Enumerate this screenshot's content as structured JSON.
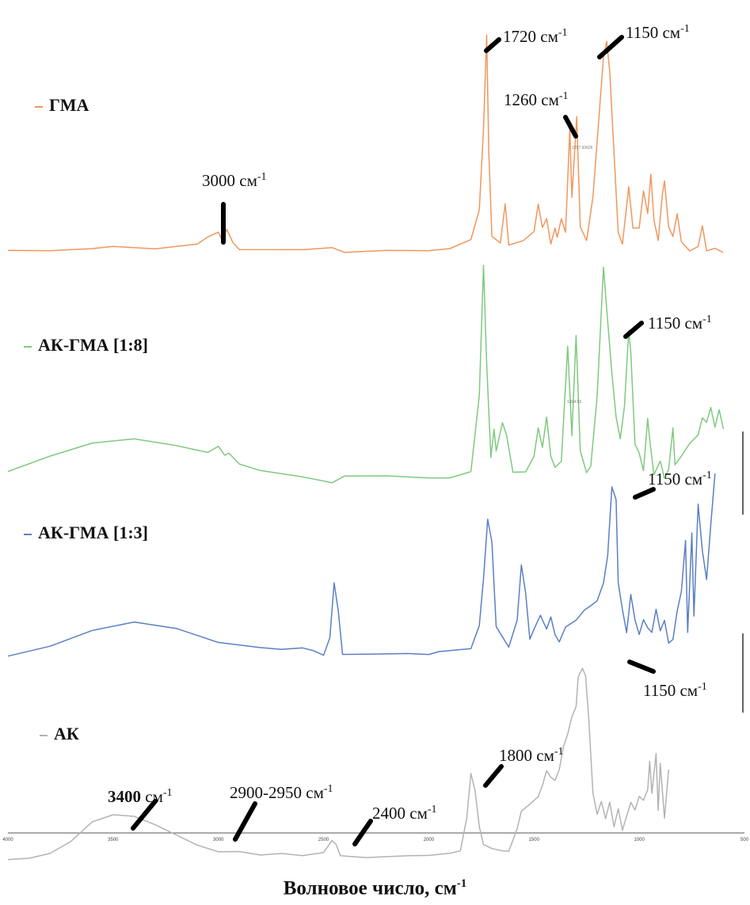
{
  "chart_data": {
    "type": "line",
    "xlabel": "Волновое число, см",
    "xlabel_sup": "-1",
    "xlim": [
      4000,
      500
    ],
    "x_ticks": [
      "4000",
      "3500",
      "3000",
      "2500",
      "2000",
      "1500",
      "1000",
      "500"
    ],
    "series": [
      {
        "name": "ГМА",
        "color": "#f0975e",
        "marker": "–",
        "points": [
          [
            4000,
            0.02
          ],
          [
            3800,
            0.02
          ],
          [
            3600,
            0.03
          ],
          [
            3500,
            0.04
          ],
          [
            3300,
            0.03
          ],
          [
            3100,
            0.05
          ],
          [
            3050,
            0.08
          ],
          [
            3000,
            0.1
          ],
          [
            2980,
            0.06
          ],
          [
            2960,
            0.11
          ],
          [
            2930,
            0.05
          ],
          [
            2900,
            0.02
          ],
          [
            2600,
            0.02
          ],
          [
            2460,
            0.03
          ],
          [
            2400,
            0.01
          ],
          [
            2200,
            0.02
          ],
          [
            2000,
            0.02
          ],
          [
            1900,
            0.03
          ],
          [
            1800,
            0.07
          ],
          [
            1760,
            0.2
          ],
          [
            1740,
            0.55
          ],
          [
            1725,
            0.96
          ],
          [
            1715,
            0.45
          ],
          [
            1700,
            0.08
          ],
          [
            1660,
            0.05
          ],
          [
            1637,
            0.22
          ],
          [
            1620,
            0.04
          ],
          [
            1550,
            0.06
          ],
          [
            1500,
            0.1
          ],
          [
            1480,
            0.22
          ],
          [
            1460,
            0.12
          ],
          [
            1440,
            0.16
          ],
          [
            1420,
            0.05
          ],
          [
            1400,
            0.12
          ],
          [
            1390,
            0.08
          ],
          [
            1370,
            0.16
          ],
          [
            1350,
            0.1
          ],
          [
            1330,
            0.55
          ],
          [
            1320,
            0.25
          ],
          [
            1297,
            0.6
          ],
          [
            1280,
            0.12
          ],
          [
            1250,
            0.06
          ],
          [
            1220,
            0.25
          ],
          [
            1170,
            0.86
          ],
          [
            1155,
            0.93
          ],
          [
            1140,
            0.8
          ],
          [
            1100,
            0.1
          ],
          [
            1080,
            0.05
          ],
          [
            1050,
            0.3
          ],
          [
            1030,
            0.12
          ],
          [
            1000,
            0.12
          ],
          [
            980,
            0.28
          ],
          [
            960,
            0.18
          ],
          [
            945,
            0.35
          ],
          [
            930,
            0.15
          ],
          [
            910,
            0.06
          ],
          [
            890,
            0.26
          ],
          [
            880,
            0.32
          ],
          [
            860,
            0.12
          ],
          [
            840,
            0.08
          ],
          [
            820,
            0.18
          ],
          [
            800,
            0.06
          ],
          [
            760,
            0.02
          ],
          [
            720,
            0.04
          ],
          [
            700,
            0.13
          ],
          [
            680,
            0.02
          ],
          [
            640,
            0.03
          ],
          [
            600,
            0.01
          ]
        ]
      },
      {
        "name": "АК-ГМА [1:8]",
        "color": "#7fc97f",
        "marker": "–",
        "points": [
          [
            4000,
            0.05
          ],
          [
            3800,
            0.12
          ],
          [
            3600,
            0.18
          ],
          [
            3400,
            0.2
          ],
          [
            3200,
            0.17
          ],
          [
            3050,
            0.14
          ],
          [
            3000,
            0.17
          ],
          [
            2970,
            0.13
          ],
          [
            2950,
            0.14
          ],
          [
            2900,
            0.09
          ],
          [
            2800,
            0.06
          ],
          [
            2600,
            0.03
          ],
          [
            2500,
            0.01
          ],
          [
            2460,
            0.0
          ],
          [
            2400,
            0.03
          ],
          [
            2200,
            0.03
          ],
          [
            2000,
            0.02
          ],
          [
            1900,
            0.02
          ],
          [
            1800,
            0.05
          ],
          [
            1760,
            0.4
          ],
          [
            1740,
            1.0
          ],
          [
            1725,
            0.55
          ],
          [
            1705,
            0.12
          ],
          [
            1690,
            0.25
          ],
          [
            1680,
            0.15
          ],
          [
            1650,
            0.28
          ],
          [
            1630,
            0.22
          ],
          [
            1600,
            0.05
          ],
          [
            1540,
            0.05
          ],
          [
            1500,
            0.12
          ],
          [
            1480,
            0.25
          ],
          [
            1460,
            0.16
          ],
          [
            1440,
            0.3
          ],
          [
            1420,
            0.12
          ],
          [
            1400,
            0.07
          ],
          [
            1370,
            0.1
          ],
          [
            1340,
            0.63
          ],
          [
            1320,
            0.22
          ],
          [
            1300,
            0.68
          ],
          [
            1280,
            0.15
          ],
          [
            1250,
            0.05
          ],
          [
            1230,
            0.08
          ],
          [
            1200,
            0.4
          ],
          [
            1170,
            0.99
          ],
          [
            1155,
            0.8
          ],
          [
            1130,
            0.5
          ],
          [
            1110,
            0.3
          ],
          [
            1090,
            0.2
          ],
          [
            1070,
            0.35
          ],
          [
            1050,
            0.7
          ],
          [
            1040,
            0.6
          ],
          [
            1020,
            0.18
          ],
          [
            1000,
            0.14
          ],
          [
            980,
            0.06
          ],
          [
            960,
            0.3
          ],
          [
            950,
            0.2
          ],
          [
            930,
            0.04
          ],
          [
            900,
            0.1
          ],
          [
            880,
            0.02
          ],
          [
            860,
            0.06
          ],
          [
            840,
            0.25
          ],
          [
            830,
            0.08
          ],
          [
            800,
            0.12
          ],
          [
            760,
            0.18
          ],
          [
            720,
            0.22
          ],
          [
            700,
            0.3
          ],
          [
            680,
            0.28
          ],
          [
            660,
            0.35
          ],
          [
            640,
            0.26
          ],
          [
            620,
            0.34
          ],
          [
            600,
            0.25
          ]
        ]
      },
      {
        "name": "АК-ГМА [1:3]",
        "color": "#5b7fc4",
        "marker": "–",
        "points": [
          [
            4000,
            0.01
          ],
          [
            3800,
            0.06
          ],
          [
            3600,
            0.14
          ],
          [
            3400,
            0.18
          ],
          [
            3200,
            0.14
          ],
          [
            3000,
            0.06
          ],
          [
            2800,
            0.03
          ],
          [
            2700,
            0.02
          ],
          [
            2600,
            0.03
          ],
          [
            2550,
            0.02
          ],
          [
            2500,
            0.0
          ],
          [
            2470,
            0.1
          ],
          [
            2450,
            0.4
          ],
          [
            2430,
            0.25
          ],
          [
            2410,
            0.02
          ],
          [
            2300,
            0.02
          ],
          [
            2100,
            0.02
          ],
          [
            2000,
            0.01
          ],
          [
            1950,
            0.02
          ],
          [
            1800,
            0.03
          ],
          [
            1760,
            0.15
          ],
          [
            1740,
            0.4
          ],
          [
            1720,
            0.72
          ],
          [
            1700,
            0.6
          ],
          [
            1680,
            0.15
          ],
          [
            1650,
            0.1
          ],
          [
            1620,
            0.05
          ],
          [
            1580,
            0.2
          ],
          [
            1560,
            0.5
          ],
          [
            1540,
            0.35
          ],
          [
            1520,
            0.1
          ],
          [
            1500,
            0.15
          ],
          [
            1470,
            0.22
          ],
          [
            1440,
            0.14
          ],
          [
            1420,
            0.2
          ],
          [
            1400,
            0.1
          ],
          [
            1380,
            0.06
          ],
          [
            1350,
            0.14
          ],
          [
            1300,
            0.18
          ],
          [
            1260,
            0.24
          ],
          [
            1240,
            0.26
          ],
          [
            1200,
            0.3
          ],
          [
            1170,
            0.4
          ],
          [
            1150,
            0.55
          ],
          [
            1130,
            0.92
          ],
          [
            1110,
            0.85
          ],
          [
            1100,
            0.4
          ],
          [
            1080,
            0.25
          ],
          [
            1060,
            0.12
          ],
          [
            1040,
            0.32
          ],
          [
            1020,
            0.18
          ],
          [
            1000,
            0.1
          ],
          [
            980,
            0.18
          ],
          [
            960,
            0.14
          ],
          [
            940,
            0.12
          ],
          [
            920,
            0.25
          ],
          [
            900,
            0.14
          ],
          [
            880,
            0.2
          ],
          [
            860,
            0.08
          ],
          [
            840,
            0.1
          ],
          [
            820,
            0.25
          ],
          [
            800,
            0.35
          ],
          [
            780,
            0.62
          ],
          [
            770,
            0.12
          ],
          [
            750,
            0.65
          ],
          [
            740,
            0.2
          ],
          [
            720,
            0.8
          ],
          [
            700,
            0.55
          ],
          [
            680,
            0.4
          ],
          [
            660,
            0.7
          ],
          [
            640,
            0.98
          ]
        ]
      },
      {
        "name": "АК",
        "color": "#b3b3b3",
        "marker": "–",
        "points": [
          [
            4000,
            -0.08
          ],
          [
            3900,
            -0.07
          ],
          [
            3800,
            -0.04
          ],
          [
            3700,
            0.03
          ],
          [
            3600,
            0.14
          ],
          [
            3500,
            0.18
          ],
          [
            3400,
            0.17
          ],
          [
            3300,
            0.12
          ],
          [
            3200,
            0.06
          ],
          [
            3100,
            0.0
          ],
          [
            3000,
            -0.04
          ],
          [
            2900,
            -0.04
          ],
          [
            2800,
            -0.06
          ],
          [
            2700,
            -0.05
          ],
          [
            2600,
            -0.06
          ],
          [
            2500,
            -0.04
          ],
          [
            2460,
            0.03
          ],
          [
            2440,
            0.01
          ],
          [
            2420,
            -0.05
          ],
          [
            2300,
            -0.06
          ],
          [
            2100,
            -0.05
          ],
          [
            2000,
            -0.05
          ],
          [
            1900,
            -0.04
          ],
          [
            1850,
            -0.03
          ],
          [
            1820,
            0.15
          ],
          [
            1800,
            0.4
          ],
          [
            1780,
            0.3
          ],
          [
            1760,
            0.1
          ],
          [
            1740,
            0.0
          ],
          [
            1700,
            -0.02
          ],
          [
            1650,
            -0.03
          ],
          [
            1620,
            -0.03
          ],
          [
            1580,
            0.1
          ],
          [
            1560,
            0.2
          ],
          [
            1520,
            0.24
          ],
          [
            1500,
            0.26
          ],
          [
            1480,
            0.28
          ],
          [
            1460,
            0.34
          ],
          [
            1440,
            0.42
          ],
          [
            1420,
            0.38
          ],
          [
            1400,
            0.36
          ],
          [
            1380,
            0.42
          ],
          [
            1360,
            0.55
          ],
          [
            1340,
            0.62
          ],
          [
            1320,
            0.72
          ],
          [
            1300,
            0.78
          ],
          [
            1290,
            0.95
          ],
          [
            1270,
            1.0
          ],
          [
            1255,
            0.96
          ],
          [
            1240,
            0.72
          ],
          [
            1220,
            0.3
          ],
          [
            1200,
            0.18
          ],
          [
            1180,
            0.25
          ],
          [
            1160,
            0.15
          ],
          [
            1140,
            0.24
          ],
          [
            1120,
            0.1
          ],
          [
            1100,
            0.2
          ],
          [
            1080,
            0.08
          ],
          [
            1060,
            0.16
          ],
          [
            1040,
            0.24
          ],
          [
            1020,
            0.2
          ],
          [
            1000,
            0.28
          ],
          [
            980,
            0.26
          ],
          [
            960,
            0.32
          ],
          [
            950,
            0.48
          ],
          [
            940,
            0.3
          ],
          [
            920,
            0.52
          ],
          [
            910,
            0.2
          ],
          [
            900,
            0.46
          ],
          [
            880,
            0.15
          ],
          [
            860,
            0.42
          ]
        ]
      }
    ],
    "annotations": [
      {
        "text": "1720 см",
        "sup": "-1"
      },
      {
        "text": "1150 см",
        "sup": "-1"
      },
      {
        "text": "1260 см",
        "sup": "-1"
      },
      {
        "text": "3000 см",
        "sup": "-1"
      },
      {
        "text": "1150 см",
        "sup": "-1"
      },
      {
        "text": "1150 см",
        "sup": "-1"
      },
      {
        "text": "1150 см",
        "sup": "-1"
      },
      {
        "text": "1800 см",
        "sup": "-1"
      },
      {
        "text": "3400",
        "bold": true,
        "tail": " см",
        "sup": "-1"
      },
      {
        "text": "2900-2950 см",
        "sup": "-1"
      },
      {
        "text": "2400 см",
        "sup": "-1"
      }
    ],
    "tiny_labels": [
      "1257.93626",
      "1304.93"
    ]
  }
}
